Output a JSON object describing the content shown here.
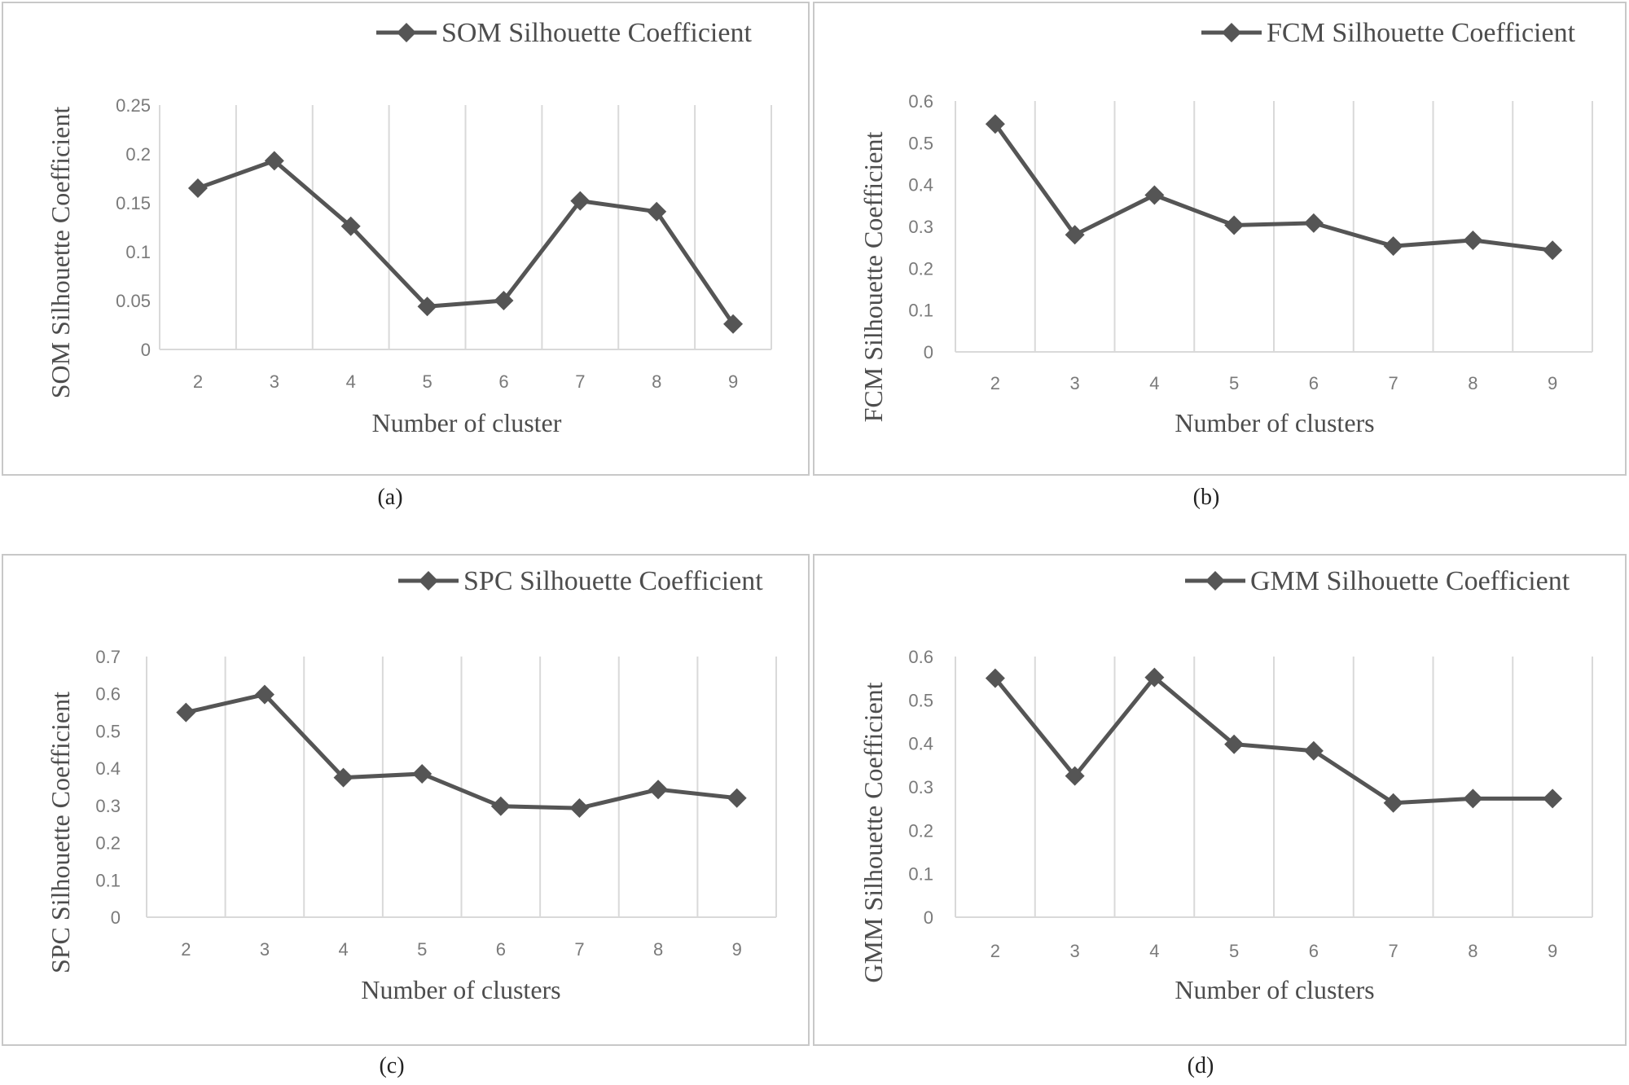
{
  "chart_data": [
    {
      "type": "line",
      "panel_label": "(a)",
      "legend": "SOM Silhouette Coefficient",
      "xlabel": "Number of cluster",
      "ylabel": "SOM Silhouette Coefficient",
      "x": [
        2,
        3,
        4,
        5,
        6,
        7,
        8,
        9
      ],
      "values": [
        0.165,
        0.193,
        0.126,
        0.044,
        0.05,
        0.152,
        0.141,
        0.026
      ],
      "yticks": [
        "0",
        "0.05",
        "0.1",
        "0.15",
        "0.2",
        "0.25"
      ],
      "ylim": [
        0,
        0.25
      ],
      "legend_position": "top-right",
      "grid": "vertical"
    },
    {
      "type": "line",
      "panel_label": "(b)",
      "legend": "FCM Silhouette Coefficient",
      "xlabel": "Number of clusters",
      "ylabel": "FCM Silhouette Coefficient",
      "x": [
        2,
        3,
        4,
        5,
        6,
        7,
        8,
        9
      ],
      "values": [
        0.545,
        0.28,
        0.375,
        0.303,
        0.308,
        0.253,
        0.267,
        0.243
      ],
      "yticks": [
        "0",
        "0.1",
        "0.2",
        "0.3",
        "0.4",
        "0.5",
        "0.6"
      ],
      "ylim": [
        0,
        0.6
      ],
      "legend_position": "top-right",
      "grid": "vertical"
    },
    {
      "type": "line",
      "panel_label": "(c)",
      "legend": "SPC Silhouette Coefficient",
      "xlabel": "Number of clusters",
      "ylabel": "SPC Silhouette Coefficient",
      "x": [
        2,
        3,
        4,
        5,
        6,
        7,
        8,
        9
      ],
      "values": [
        0.55,
        0.598,
        0.375,
        0.385,
        0.298,
        0.293,
        0.343,
        0.32
      ],
      "yticks": [
        "0",
        "0.1",
        "0.2",
        "0.3",
        "0.4",
        "0.5",
        "0.6",
        "0.7"
      ],
      "ylim": [
        0,
        0.7
      ],
      "legend_position": "top-right",
      "grid": "vertical"
    },
    {
      "type": "line",
      "panel_label": "(d)",
      "legend": "GMM Silhouette Coefficient",
      "xlabel": "Number of clusters",
      "ylabel": "GMM Silhouette Coefficient",
      "x": [
        2,
        3,
        4,
        5,
        6,
        7,
        8,
        9
      ],
      "values": [
        0.55,
        0.325,
        0.552,
        0.398,
        0.383,
        0.263,
        0.273,
        0.273
      ],
      "yticks": [
        "0",
        "0.1",
        "0.2",
        "0.3",
        "0.4",
        "0.5",
        "0.6"
      ],
      "ylim": [
        0,
        0.6
      ],
      "legend_position": "top-right",
      "grid": "vertical"
    }
  ],
  "colors": {
    "series": "#555555",
    "grid": "#d9d9d9",
    "frame": "#c8c8c8",
    "tick_text": "#7a7a7a",
    "axis_text": "#4d4d4d"
  }
}
